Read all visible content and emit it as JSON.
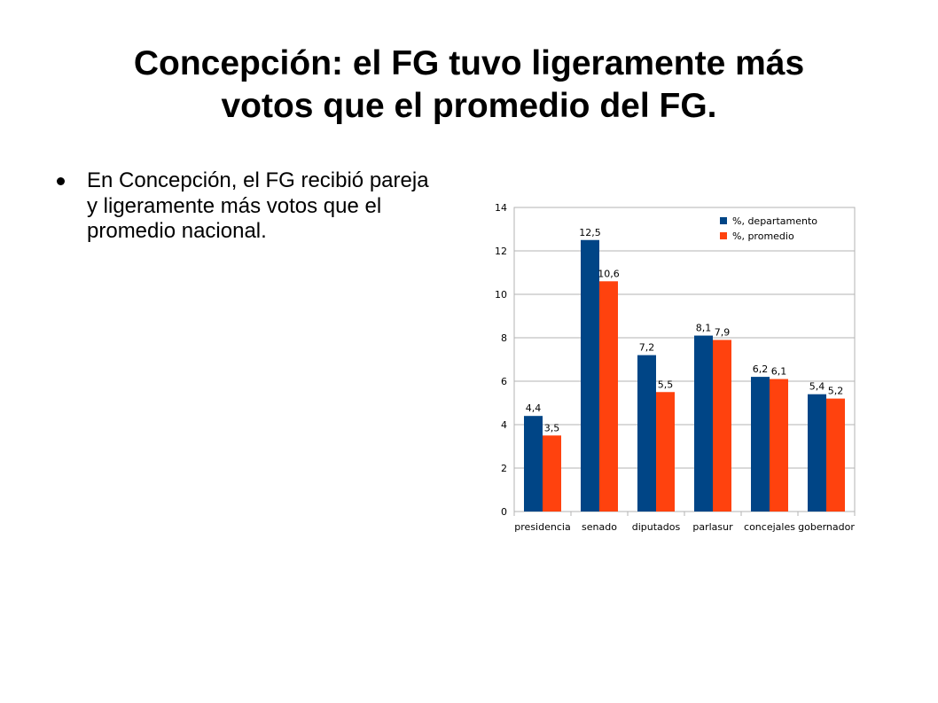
{
  "slide": {
    "title_line1": "Concepción: el FG tuvo ligeramente más",
    "title_line2": "votos que el promedio del FG.",
    "bullets": [
      "En Concepción, el FG recibió pareja y ligeramente más votos que el promedio nacional."
    ]
  },
  "chart_data": {
    "type": "bar",
    "categories": [
      "presidencia",
      "senado",
      "diputados",
      "parlasur",
      "concejales",
      "gobernador"
    ],
    "series": [
      {
        "name": "%, departamento",
        "color": "#004586",
        "values": [
          4.4,
          12.5,
          7.2,
          8.1,
          6.2,
          5.4
        ],
        "labels": [
          "4,4",
          "12,5",
          "7,2",
          "8,1",
          "6,2",
          "5,4"
        ]
      },
      {
        "name": "%, promedio",
        "color": "#ff420e",
        "values": [
          3.5,
          10.6,
          5.5,
          7.9,
          6.1,
          5.2
        ],
        "labels": [
          "3,5",
          "10,6",
          "5,5",
          "7,9",
          "6,1",
          "5,2"
        ]
      }
    ],
    "ylim": [
      0,
      14
    ],
    "yticks": [
      0,
      2,
      4,
      6,
      8,
      10,
      12,
      14
    ],
    "grid": true,
    "legend_position": "top-right",
    "title": "",
    "xlabel": "",
    "ylabel": ""
  }
}
